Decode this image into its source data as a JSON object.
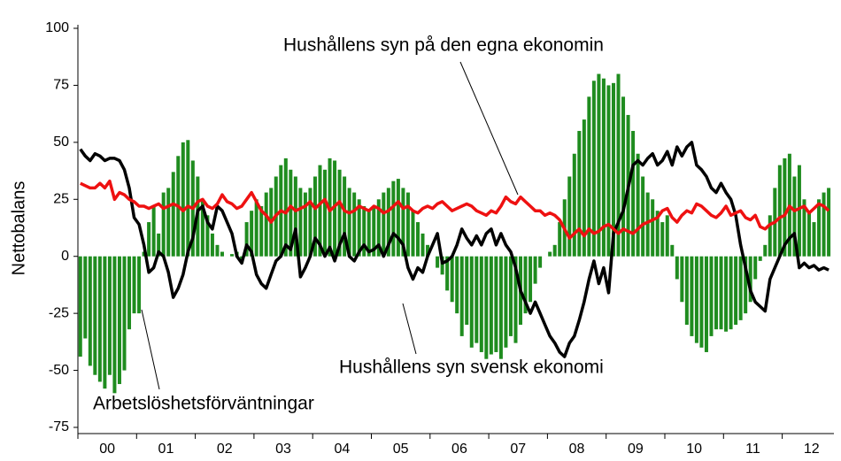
{
  "chart_data": {
    "type": "bar",
    "y_label": "Nettobalans",
    "ylim": [
      -75,
      100
    ],
    "yticks": [
      -75,
      -50,
      -25,
      0,
      25,
      50,
      75,
      100
    ],
    "categories": [
      null,
      null,
      null,
      null,
      null,
      null,
      "00",
      null,
      null,
      null,
      null,
      null,
      null,
      null,
      null,
      null,
      null,
      null,
      "01",
      null,
      null,
      null,
      null,
      null,
      null,
      null,
      null,
      null,
      null,
      null,
      "02",
      null,
      null,
      null,
      null,
      null,
      null,
      null,
      null,
      null,
      null,
      null,
      "03",
      null,
      null,
      null,
      null,
      null,
      null,
      null,
      null,
      null,
      null,
      null,
      "04",
      null,
      null,
      null,
      null,
      null,
      null,
      null,
      null,
      null,
      null,
      null,
      "05",
      null,
      null,
      null,
      null,
      null,
      null,
      null,
      null,
      null,
      null,
      null,
      "06",
      null,
      null,
      null,
      null,
      null,
      null,
      null,
      null,
      null,
      null,
      null,
      "07",
      null,
      null,
      null,
      null,
      null,
      null,
      null,
      null,
      null,
      null,
      null,
      "08",
      null,
      null,
      null,
      null,
      null,
      null,
      null,
      null,
      null,
      null,
      null,
      "09",
      null,
      null,
      null,
      null,
      null,
      null,
      null,
      null,
      null,
      null,
      null,
      "10",
      null,
      null,
      null,
      null,
      null,
      null,
      null,
      null,
      null,
      null,
      null,
      "11",
      null,
      null,
      null,
      null,
      null,
      null,
      null,
      null,
      null,
      null,
      null,
      "12",
      null,
      null,
      null
    ],
    "series": [
      {
        "name": "Arbetslöshetsförväntningar",
        "type": "bar",
        "color": "#1f8c1f",
        "values": [
          -44,
          -36,
          -48,
          -52,
          -55,
          -58,
          -52,
          -60,
          -56,
          -50,
          -32,
          -25,
          -25,
          2,
          15,
          22,
          10,
          28,
          30,
          37,
          44,
          50,
          51,
          42,
          35,
          25,
          18,
          10,
          5,
          2,
          0,
          1,
          2,
          -3,
          15,
          20,
          25,
          22,
          28,
          30,
          35,
          40,
          43,
          38,
          35,
          30,
          28,
          30,
          35,
          40,
          38,
          43,
          42,
          38,
          35,
          30,
          28,
          25,
          22,
          20,
          22,
          25,
          28,
          30,
          33,
          34,
          30,
          28,
          20,
          15,
          10,
          5,
          0,
          -5,
          -8,
          -15,
          -20,
          -25,
          -35,
          -30,
          -40,
          -38,
          -42,
          -45,
          -43,
          -42,
          -45,
          -40,
          -35,
          -38,
          -30,
          -25,
          -20,
          -12,
          -5,
          0,
          2,
          5,
          15,
          25,
          35,
          45,
          55,
          60,
          70,
          77,
          80,
          78,
          75,
          76,
          80,
          70,
          62,
          55,
          45,
          35,
          28,
          25,
          20,
          15,
          18,
          5,
          -10,
          -20,
          -30,
          -35,
          -38,
          -40,
          -42,
          -35,
          -32,
          -32,
          -33,
          -32,
          -30,
          -28,
          -25,
          -20,
          -10,
          -2,
          5,
          18,
          30,
          40,
          43,
          45,
          35,
          40,
          25,
          20,
          15,
          25,
          28,
          30
        ]
      },
      {
        "name": "Hushållens syn svensk ekonomi",
        "type": "line",
        "color": "#000000",
        "values": [
          47,
          44,
          42,
          45,
          44,
          42,
          43,
          43,
          42,
          38,
          30,
          17,
          14,
          5,
          -7,
          -5,
          2,
          0,
          -7,
          -18,
          -14,
          -8,
          2,
          8,
          20,
          22,
          15,
          12,
          22,
          20,
          15,
          10,
          0,
          -3,
          5,
          2,
          -8,
          -12,
          -14,
          -8,
          -2,
          0,
          5,
          3,
          12,
          -9,
          -5,
          0,
          8,
          5,
          0,
          4,
          -2,
          5,
          10,
          0,
          -2,
          2,
          5,
          2,
          3,
          5,
          0,
          5,
          10,
          8,
          5,
          -5,
          -10,
          -5,
          -7,
          0,
          5,
          10,
          -3,
          -2,
          0,
          5,
          12,
          8,
          5,
          9,
          5,
          10,
          12,
          5,
          10,
          5,
          2,
          -5,
          -15,
          -20,
          -25,
          -20,
          -25,
          -30,
          -35,
          -38,
          -42,
          -44,
          -38,
          -35,
          -28,
          -20,
          -10,
          -2,
          -12,
          -5,
          -16,
          10,
          15,
          20,
          30,
          40,
          42,
          40,
          43,
          45,
          40,
          42,
          46,
          40,
          48,
          44,
          48,
          50,
          40,
          38,
          35,
          30,
          28,
          32,
          28,
          25,
          18,
          5,
          -5,
          -15,
          -20,
          -22,
          -24,
          -10,
          -5,
          0,
          5,
          8,
          10,
          -5,
          -3,
          -5,
          -4,
          -6,
          -5,
          -6
        ]
      },
      {
        "name": "Hushållens syn på den egna ekonomin",
        "type": "line",
        "color": "#ee1111",
        "values": [
          32,
          31,
          30,
          30,
          32,
          30,
          33,
          25,
          28,
          27,
          25,
          24,
          22,
          22,
          21,
          22,
          23,
          21,
          22,
          23,
          22,
          20,
          22,
          21,
          24,
          25,
          22,
          21,
          23,
          27,
          24,
          23,
          21,
          22,
          25,
          28,
          24,
          20,
          18,
          15,
          18,
          20,
          19,
          22,
          20,
          21,
          22,
          24,
          21,
          23,
          25,
          20,
          22,
          24,
          20,
          19,
          20,
          22,
          21,
          20,
          22,
          21,
          19,
          20,
          22,
          24,
          21,
          22,
          20,
          19,
          21,
          22,
          21,
          23,
          24,
          22,
          20,
          21,
          22,
          23,
          22,
          20,
          19,
          18,
          20,
          19,
          22,
          26,
          24,
          23,
          26,
          24,
          22,
          20,
          20,
          18,
          19,
          18,
          16,
          12,
          8,
          10,
          12,
          9,
          12,
          10,
          11,
          13,
          14,
          12,
          10,
          12,
          11,
          10,
          12,
          14,
          15,
          16,
          17,
          20,
          21,
          17,
          15,
          18,
          20,
          19,
          23,
          22,
          20,
          18,
          17,
          19,
          22,
          18,
          19,
          20,
          17,
          16,
          18,
          13,
          12,
          14,
          15,
          17,
          18,
          22,
          20,
          21,
          22,
          19,
          21,
          23,
          22,
          20
        ]
      }
    ]
  }
}
